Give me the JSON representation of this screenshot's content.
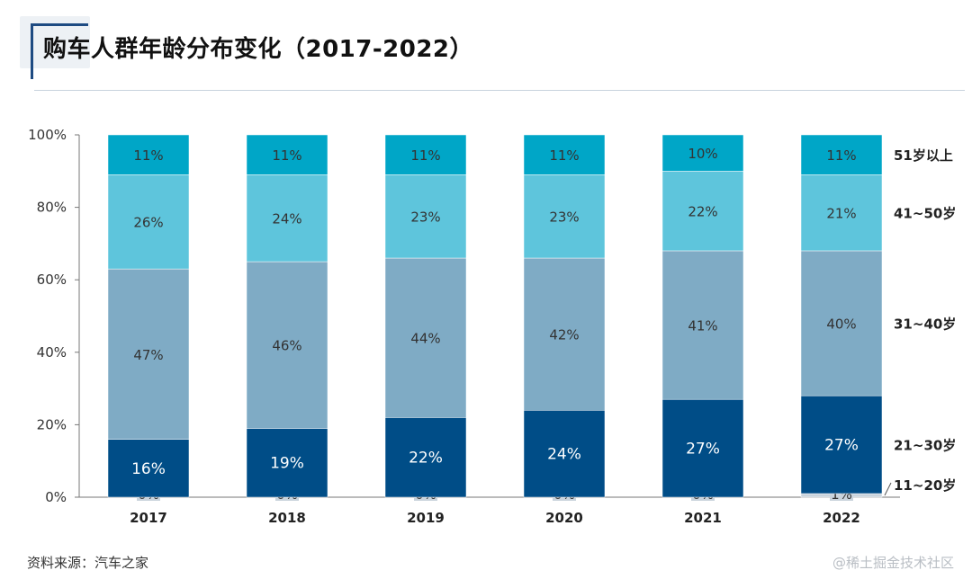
{
  "header": {
    "title": "购车人群年龄分布变化（2017-2022）"
  },
  "footer": {
    "source": "资料来源：汽车之家",
    "watermark": "@稀土掘金技术社区"
  },
  "chart_data": {
    "type": "bar",
    "stacked": true,
    "title": "",
    "xlabel": "",
    "ylabel": "",
    "ylim": [
      0,
      100
    ],
    "y_ticks": [
      "0%",
      "20%",
      "40%",
      "60%",
      "80%",
      "100%"
    ],
    "grid": false,
    "legend_position": "right",
    "categories": [
      "2017",
      "2018",
      "2019",
      "2020",
      "2021",
      "2022"
    ],
    "series": [
      {
        "name": "11~20岁",
        "color": "#c9d3dc",
        "values": [
          0,
          0,
          0,
          0,
          0,
          1
        ],
        "labels": [
          "0%",
          "0%",
          "0%",
          "0%",
          "0%",
          "1%"
        ]
      },
      {
        "name": "21~30岁",
        "color": "#004d87",
        "values": [
          16,
          19,
          22,
          24,
          27,
          27
        ],
        "labels": [
          "16%",
          "19%",
          "22%",
          "24%",
          "27%",
          "27%"
        ]
      },
      {
        "name": "31~40岁",
        "color": "#7fabc5",
        "values": [
          47,
          46,
          44,
          42,
          41,
          40
        ],
        "labels": [
          "47%",
          "46%",
          "44%",
          "42%",
          "41%",
          "40%"
        ]
      },
      {
        "name": "41~50岁",
        "color": "#5ec5dc",
        "values": [
          26,
          24,
          23,
          23,
          22,
          21
        ],
        "labels": [
          "26%",
          "24%",
          "23%",
          "23%",
          "22%",
          "21%"
        ]
      },
      {
        "name": "51岁以上",
        "color": "#00a6c7",
        "values": [
          11,
          11,
          11,
          11,
          10,
          11
        ],
        "labels": [
          "11%",
          "11%",
          "11%",
          "11%",
          "10%",
          "11%"
        ]
      }
    ]
  }
}
